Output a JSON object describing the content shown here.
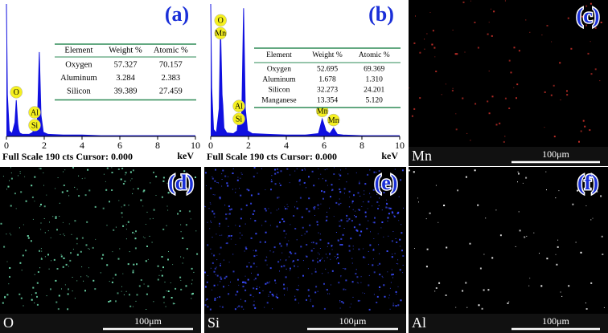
{
  "chart_data": [
    {
      "type": "line",
      "panel_label": "(a)",
      "footer": "Full Scale 190 cts Cursor: 0.000",
      "x_label": "keV",
      "xlim": [
        0,
        10
      ],
      "ylim": [
        0,
        190
      ],
      "xticks": [
        0,
        2,
        4,
        6,
        8,
        10
      ],
      "color": "#1010e0",
      "x": [
        0,
        0.05,
        0.15,
        0.3,
        0.45,
        0.52,
        0.6,
        0.64,
        0.7,
        0.85,
        1.2,
        1.4,
        1.49,
        1.58,
        1.65,
        1.74,
        1.83,
        1.95,
        2.2,
        3,
        4,
        5,
        5.7,
        5.9,
        6.1,
        6.3,
        6.5,
        6.7,
        7,
        8,
        9,
        10
      ],
      "values": [
        190,
        60,
        8,
        4,
        20,
        52,
        18,
        10,
        5,
        3,
        3,
        6,
        23,
        8,
        30,
        121,
        30,
        6,
        3,
        2,
        2,
        1,
        1,
        1,
        1,
        1,
        1,
        1,
        1,
        1,
        1,
        1
      ],
      "peak_labels": [
        {
          "label": "O",
          "x": 0.52
        },
        {
          "label": "Al",
          "x": 1.49
        },
        {
          "label": "Si",
          "x": 1.74
        }
      ],
      "table": {
        "header": [
          "Element",
          "Weight %",
          "Atomic %"
        ],
        "rows": [
          [
            "Oxygen",
            "57.327",
            "70.157"
          ],
          [
            "Aluminum",
            "3.284",
            "2.383"
          ],
          [
            "Silicon",
            "39.389",
            "27.459"
          ]
        ]
      }
    },
    {
      "type": "line",
      "panel_label": "(b)",
      "footer": "Full Scale 190 cts Cursor: 0.000",
      "x_label": "keV",
      "xlim": [
        0,
        10
      ],
      "ylim": [
        0,
        190
      ],
      "xticks": [
        0,
        2,
        4,
        6,
        8,
        10
      ],
      "color": "#1010e0",
      "x": [
        0,
        0.05,
        0.15,
        0.3,
        0.45,
        0.52,
        0.6,
        0.64,
        0.7,
        0.85,
        1.2,
        1.4,
        1.49,
        1.58,
        1.65,
        1.74,
        1.83,
        1.95,
        2.2,
        3,
        4,
        5,
        5.7,
        5.9,
        6.1,
        6.3,
        6.5,
        6.7,
        7,
        8,
        9,
        10
      ],
      "values": [
        190,
        70,
        10,
        5,
        40,
        155,
        60,
        45,
        12,
        5,
        4,
        8,
        32,
        10,
        40,
        184,
        40,
        8,
        4,
        3,
        2,
        2,
        4,
        25,
        8,
        4,
        12,
        3,
        2,
        1,
        1,
        1
      ],
      "peak_labels": [
        {
          "label": "O",
          "x": 0.52
        },
        {
          "label": "Mn",
          "x": 0.64
        },
        {
          "label": "Al",
          "x": 1.49
        },
        {
          "label": "Si",
          "x": 1.74
        },
        {
          "label": "Mn",
          "x": 5.9
        },
        {
          "label": "Mn",
          "x": 6.5
        }
      ],
      "table": {
        "header": [
          "Element",
          "Weight %",
          "Atomic %"
        ],
        "rows": [
          [
            "Oxygen",
            "52.695",
            "69.369"
          ],
          [
            "Aluminum",
            "1.678",
            "1.310"
          ],
          [
            "Silicon",
            "32.273",
            "24.201"
          ],
          [
            "Manganese",
            "13.354",
            "5.120"
          ]
        ]
      }
    }
  ],
  "maps": [
    {
      "panel_label": "(c)",
      "element": "Mn",
      "scale": "100μm",
      "dot_color": "#c8302a"
    },
    {
      "panel_label": "(d)",
      "element": "O",
      "scale": "100μm",
      "dot_color": "#70e0b0"
    },
    {
      "panel_label": "(e)",
      "element": "Si",
      "scale": "100μm",
      "dot_color": "#3a4cff"
    },
    {
      "panel_label": "(f)",
      "element": "Al",
      "scale": "100μm",
      "dot_color": "#ffffff"
    }
  ]
}
